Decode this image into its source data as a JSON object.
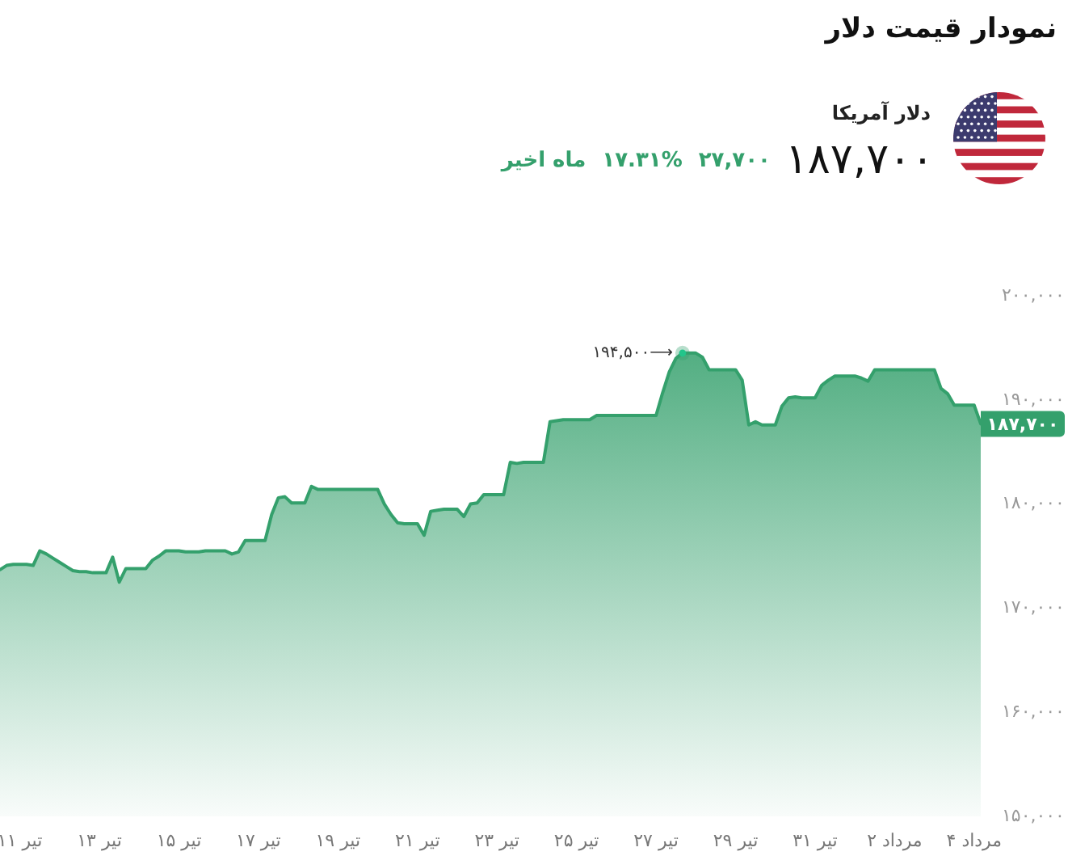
{
  "chart_data": {
    "type": "area",
    "title": "نمودار قیمت دلار",
    "subtitle": "دلار آمریکا",
    "annotations": [
      "۱۸۷,۷۰۰",
      "۲۷,۷۰۰",
      "۱۷.۳۱%",
      "ماه اخیر"
    ],
    "categories": [
      null,
      null,
      null,
      "۱۱ تیر",
      null,
      null,
      null,
      null,
      null,
      null,
      null,
      null,
      null,
      null,
      null,
      "۱۳ تیر",
      null,
      null,
      null,
      null,
      null,
      null,
      null,
      null,
      null,
      null,
      null,
      "۱۵ تیر",
      null,
      null,
      null,
      null,
      null,
      null,
      null,
      null,
      null,
      null,
      null,
      "۱۷ تیر",
      null,
      null,
      null,
      null,
      null,
      null,
      null,
      null,
      null,
      null,
      null,
      "۱۹ تیر",
      null,
      null,
      null,
      null,
      null,
      null,
      null,
      null,
      null,
      null,
      null,
      "۲۱ تیر",
      null,
      null,
      null,
      null,
      null,
      null,
      null,
      null,
      null,
      null,
      null,
      "۲۳ تیر",
      null,
      null,
      null,
      null,
      null,
      null,
      null,
      null,
      null,
      null,
      null,
      "۲۵ تیر",
      null,
      null,
      null,
      null,
      null,
      null,
      null,
      null,
      null,
      null,
      null,
      "۲۷ تیر",
      null,
      null,
      null,
      null,
      null,
      null,
      null,
      null,
      null,
      null,
      null,
      "۲۹ تیر",
      null,
      null,
      null,
      null,
      null,
      null,
      null,
      null,
      null,
      null,
      null,
      "۳۱ تیر",
      null,
      null,
      null,
      null,
      null,
      null,
      null,
      null,
      null,
      null,
      null,
      "۲ مرداد",
      null,
      null,
      null,
      null,
      null,
      null,
      null,
      null,
      null,
      null,
      null,
      "۴ مرداد",
      null
    ],
    "values": [
      173700,
      174100,
      174200,
      174200,
      174200,
      174100,
      175500,
      175200,
      174800,
      174400,
      174000,
      173600,
      173500,
      173500,
      173400,
      173400,
      173400,
      174900,
      172500,
      173800,
      173800,
      173800,
      173800,
      174600,
      175000,
      175500,
      175500,
      175500,
      175400,
      175400,
      175400,
      175500,
      175500,
      175500,
      175500,
      175200,
      175400,
      176500,
      176500,
      176500,
      176500,
      179000,
      180600,
      180700,
      180100,
      180100,
      180100,
      181700,
      181400,
      181400,
      181400,
      181400,
      181400,
      181400,
      181400,
      181400,
      181400,
      181400,
      180000,
      179000,
      178200,
      178100,
      178100,
      178100,
      177000,
      179300,
      179400,
      179500,
      179500,
      179500,
      178800,
      180000,
      180100,
      180900,
      180900,
      180900,
      180900,
      184000,
      183900,
      184000,
      184000,
      184000,
      184000,
      187900,
      188000,
      188100,
      188100,
      188100,
      188100,
      188100,
      188500,
      188500,
      188500,
      188500,
      188500,
      188500,
      188500,
      188500,
      188500,
      188500,
      190700,
      192700,
      194000,
      194500,
      194500,
      194500,
      194100,
      192900,
      192900,
      192900,
      192900,
      192900,
      191900,
      187600,
      187900,
      187600,
      187600,
      187600,
      189400,
      190200,
      190300,
      190200,
      190200,
      190200,
      191400,
      191900,
      192300,
      192300,
      192300,
      192300,
      192100,
      191800,
      192900,
      192900,
      192900,
      192900,
      192900,
      192900,
      192900,
      192900,
      192900,
      192900,
      191100,
      190600,
      189500,
      189500,
      189500,
      189500,
      187700
    ],
    "value_labels": [
      null,
      null,
      null,
      null,
      null,
      null,
      null,
      null,
      null,
      null,
      null,
      null,
      null,
      null,
      null,
      null,
      null,
      null,
      null,
      null,
      null,
      null,
      null,
      null,
      null,
      null,
      null,
      null,
      null,
      null,
      null,
      null,
      null,
      null,
      null,
      null,
      null,
      null,
      null,
      null,
      null,
      null,
      null,
      null,
      null,
      null,
      null,
      null,
      null,
      null,
      null,
      null,
      null,
      null,
      null,
      null,
      null,
      null,
      null,
      null,
      null,
      null,
      null,
      null,
      null,
      null,
      null,
      null,
      null,
      null,
      null,
      null,
      null,
      null,
      null,
      null,
      null,
      null,
      null,
      null,
      null,
      null,
      null,
      null,
      null,
      null,
      null,
      null,
      null,
      null,
      null,
      null,
      null,
      null,
      null,
      null,
      null,
      null,
      null,
      null,
      null,
      null,
      null,
      "۱۹۴,۵۰۰⟶",
      null,
      null,
      null,
      null,
      null,
      null,
      null,
      null,
      null,
      null,
      null,
      null,
      null,
      null,
      null,
      null,
      null,
      null,
      null,
      null,
      null,
      null,
      null,
      null,
      null,
      null,
      null,
      null,
      null,
      null,
      null,
      null,
      null,
      null,
      null,
      null,
      null,
      null,
      null,
      null,
      null,
      null,
      null,
      null,
      "۱۸۷,۷۰۰"
    ],
    "color": "#34a06c",
    "ylim": [
      150000,
      200000
    ],
    "yticks": [
      {
        "value": 150000,
        "label": "۱۵۰,۰۰۰"
      },
      {
        "value": 160000,
        "label": "۱۶۰,۰۰۰"
      },
      {
        "value": 170000,
        "label": "۱۷۰,۰۰۰"
      },
      {
        "value": 180000,
        "label": "۱۸۰,۰۰۰"
      },
      {
        "value": 190000,
        "label": "۱۹۰,۰۰۰"
      },
      {
        "value": 200000,
        "label": "۲۰۰,۰۰۰"
      }
    ],
    "grid": false,
    "legend": false
  }
}
